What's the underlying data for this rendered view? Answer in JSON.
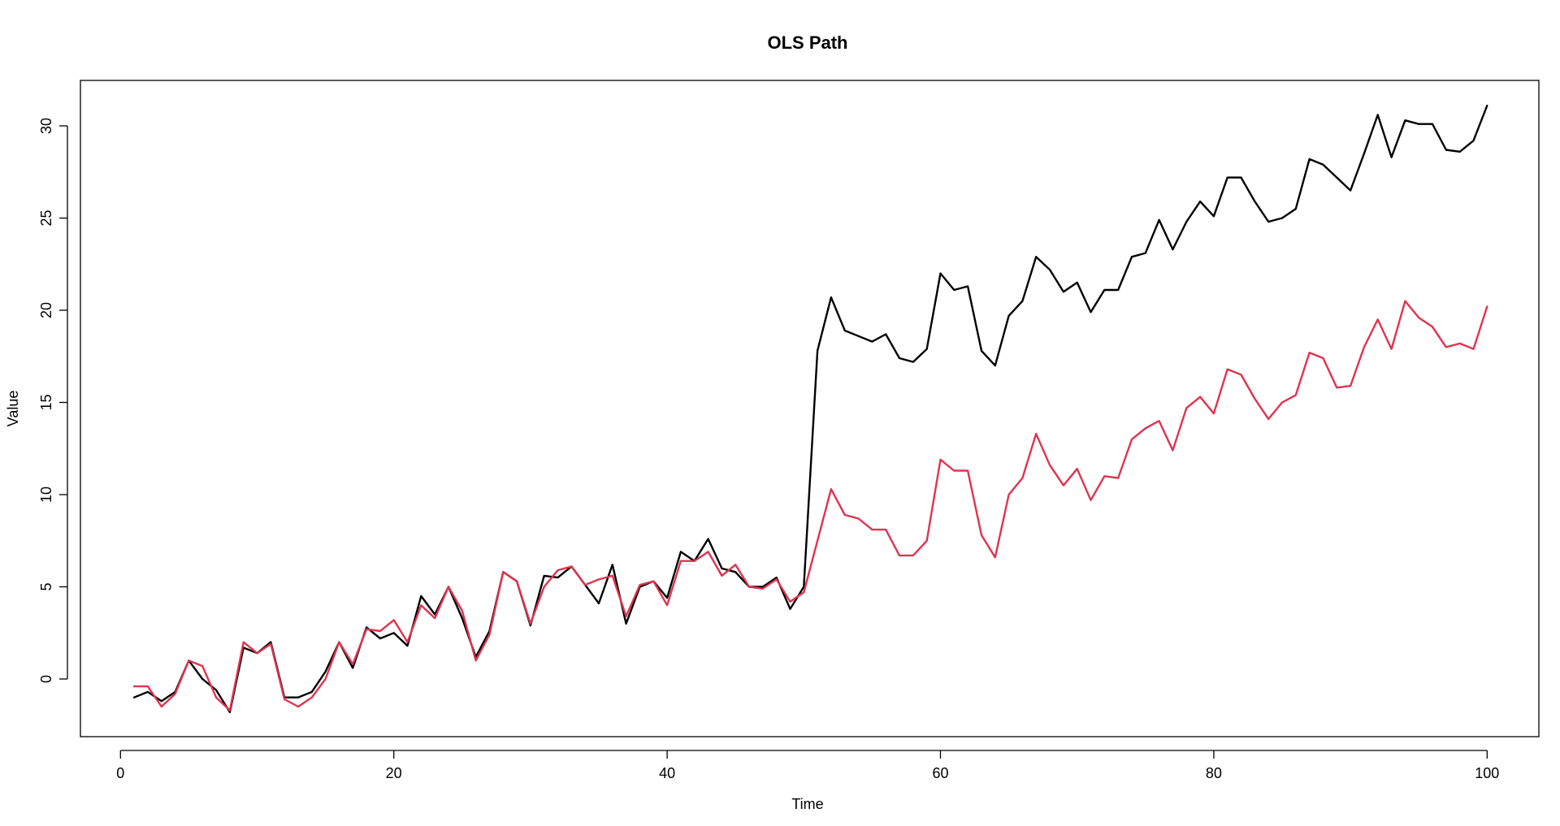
{
  "chart_data": {
    "type": "line",
    "title": "OLS Path",
    "xlabel": "Time",
    "ylabel": "Value",
    "xlim": [
      1,
      100
    ],
    "ylim": [
      -3.2,
      32.5
    ],
    "xticks": [
      0,
      20,
      40,
      60,
      80,
      100
    ],
    "yticks": [
      0,
      5,
      10,
      15,
      20,
      25,
      30
    ],
    "grid": false,
    "legend": "none",
    "series": [
      {
        "color": "#000000",
        "x": [
          1,
          2,
          3,
          4,
          5,
          6,
          7,
          8,
          9,
          10,
          11,
          12,
          13,
          14,
          15,
          16,
          17,
          18,
          19,
          20,
          21,
          22,
          23,
          24,
          25,
          26,
          27,
          28,
          29,
          30,
          31,
          32,
          33,
          34,
          35,
          36,
          37,
          38,
          39,
          40,
          41,
          42,
          43,
          44,
          45,
          46,
          47,
          48,
          49,
          50,
          51,
          52,
          53,
          54,
          55,
          56,
          57,
          58,
          59,
          60,
          61,
          62,
          63,
          64,
          65,
          66,
          67,
          68,
          69,
          70,
          71,
          72,
          73,
          74,
          75,
          76,
          77,
          78,
          79,
          80,
          81,
          82,
          83,
          84,
          85,
          86,
          87,
          88,
          89,
          90,
          91,
          92,
          93,
          94,
          95,
          96,
          97,
          98,
          99,
          100
        ],
        "y": [
          -1.0,
          -0.7,
          -1.2,
          -0.7,
          1.0,
          0.0,
          -0.6,
          -1.8,
          1.7,
          1.4,
          2.0,
          -1.0,
          -1.0,
          -0.7,
          0.4,
          2.0,
          0.6,
          2.8,
          2.2,
          2.5,
          1.8,
          4.5,
          3.5,
          5.0,
          3.3,
          1.2,
          2.6,
          5.8,
          5.3,
          2.9,
          5.6,
          5.5,
          6.1,
          5.1,
          4.1,
          6.2,
          3.0,
          5.0,
          5.3,
          4.4,
          6.9,
          6.4,
          7.6,
          6.0,
          5.8,
          5.0,
          5.0,
          5.5,
          3.8,
          5.0,
          17.8,
          20.7,
          18.9,
          18.6,
          18.3,
          18.7,
          17.4,
          17.2,
          17.9,
          22.0,
          21.1,
          21.3,
          17.8,
          17.0,
          19.7,
          20.5,
          22.9,
          22.2,
          21.0,
          21.5,
          19.9,
          21.1,
          21.1,
          22.9,
          23.1,
          24.9,
          23.3,
          24.8,
          25.9,
          25.1,
          27.2,
          27.2,
          25.9,
          24.8,
          25.0,
          25.5,
          28.2,
          27.9,
          27.2,
          26.5,
          28.5,
          30.6,
          28.3,
          30.3,
          30.1,
          30.1,
          28.7,
          28.6,
          29.2,
          31.1
        ]
      },
      {
        "color": "#e0334f",
        "x": [
          1,
          2,
          3,
          4,
          5,
          6,
          7,
          8,
          9,
          10,
          11,
          12,
          13,
          14,
          15,
          16,
          17,
          18,
          19,
          20,
          21,
          22,
          23,
          24,
          25,
          26,
          27,
          28,
          29,
          30,
          31,
          32,
          33,
          34,
          35,
          36,
          37,
          38,
          39,
          40,
          41,
          42,
          43,
          44,
          45,
          46,
          47,
          48,
          49,
          50,
          51,
          52,
          53,
          54,
          55,
          56,
          57,
          58,
          59,
          60,
          61,
          62,
          63,
          64,
          65,
          66,
          67,
          68,
          69,
          70,
          71,
          72,
          73,
          74,
          75,
          76,
          77,
          78,
          79,
          80,
          81,
          82,
          83,
          84,
          85,
          86,
          87,
          88,
          89,
          90,
          91,
          92,
          93,
          94,
          95,
          96,
          97,
          98,
          99,
          100
        ],
        "y": [
          -0.4,
          -0.4,
          -1.5,
          -0.8,
          1.0,
          0.7,
          -1.0,
          -1.7,
          2.0,
          1.4,
          1.9,
          -1.1,
          -1.5,
          -1.0,
          0.0,
          2.0,
          0.8,
          2.7,
          2.6,
          3.2,
          2.0,
          4.0,
          3.3,
          5.0,
          3.7,
          1.0,
          2.4,
          5.8,
          5.3,
          3.0,
          5.0,
          5.9,
          6.1,
          5.1,
          5.4,
          5.6,
          3.4,
          5.1,
          5.3,
          4.0,
          6.4,
          6.4,
          6.9,
          5.6,
          6.2,
          5.0,
          4.9,
          5.4,
          4.2,
          4.7,
          7.5,
          10.3,
          8.9,
          8.7,
          8.1,
          8.1,
          6.7,
          6.7,
          7.5,
          11.9,
          11.3,
          11.3,
          7.8,
          6.6,
          10.0,
          10.9,
          13.3,
          11.6,
          10.5,
          11.4,
          9.7,
          11.0,
          10.9,
          13.0,
          13.6,
          14.0,
          12.4,
          14.7,
          15.3,
          14.4,
          16.8,
          16.5,
          15.2,
          14.1,
          15.0,
          15.4,
          17.7,
          17.4,
          15.8,
          15.9,
          18.0,
          19.5,
          17.9,
          20.5,
          19.6,
          19.1,
          18.0,
          18.2,
          17.9,
          20.2
        ]
      }
    ]
  }
}
